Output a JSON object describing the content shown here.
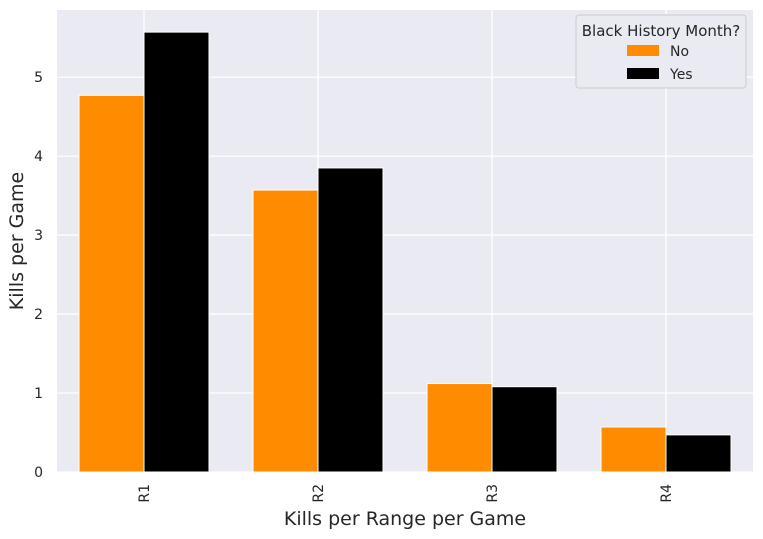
{
  "chart_data": {
    "type": "bar",
    "categories": [
      "R1",
      "R2",
      "R3",
      "R4"
    ],
    "series": [
      {
        "name": "No",
        "values": [
          4.77,
          3.57,
          1.12,
          0.57
        ],
        "color": "#ff8c00"
      },
      {
        "name": "Yes",
        "values": [
          5.57,
          3.85,
          1.08,
          0.47
        ],
        "color": "#000000"
      }
    ],
    "xlabel": "Kills per Range per Game",
    "ylabel": "Kills per Game",
    "ylim": [
      0,
      5.85
    ],
    "yticks": [
      "0",
      "1",
      "2",
      "3",
      "4",
      "5"
    ],
    "legend": {
      "title": "Black History Month?",
      "placement": "top-right"
    },
    "grid": true,
    "background": "#eaeaf2"
  }
}
